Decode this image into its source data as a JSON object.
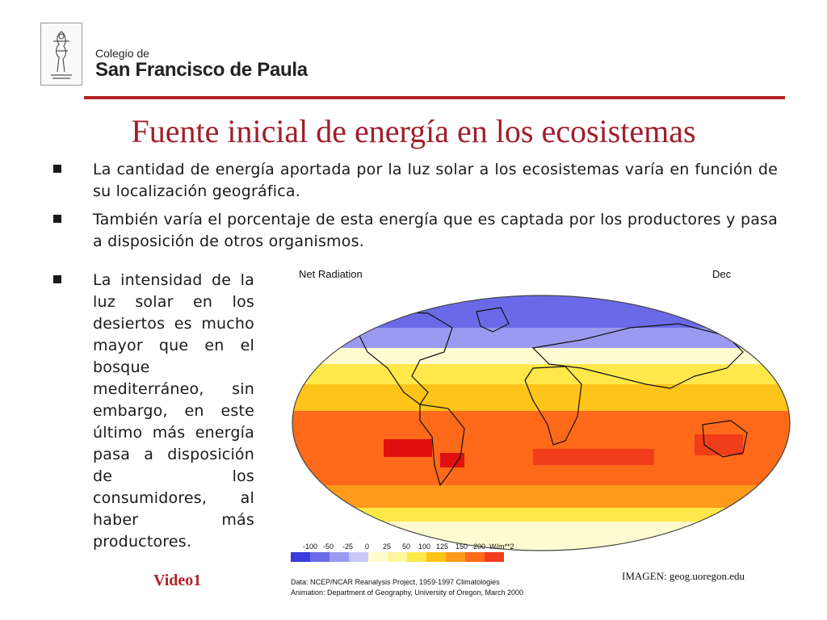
{
  "header": {
    "school_small": "Colegio de",
    "school_big": "San Francisco de Paula"
  },
  "title": "Fuente inicial de energía en los ecosistemas",
  "bullets": [
    "La cantidad de energía aportada por la luz solar a los ecosistemas varía en función de su localización geográfica.",
    "También varía el porcentaje de esta energía que es captada por los productores y pasa a disposición de otros organismos.",
    "La intensidad de la luz solar en los desiertos es mucho mayor que en el bosque mediterráneo, sin embargo, en este último más energía pasa a disposición de los consumidores, al haber más productores."
  ],
  "map": {
    "title": "Net Radiation",
    "month": "Dec",
    "scale_labels": [
      "-100",
      "-50",
      "-25",
      "0",
      "25",
      "50",
      "100",
      "125",
      "150",
      "200",
      "W/m**2"
    ],
    "scale_colors": [
      "#3b3bdc",
      "#6a6ae8",
      "#9a9af0",
      "#c8c8f6",
      "#fffbd0",
      "#fff5a0",
      "#ffe84a",
      "#ffc41a",
      "#ff9a1a",
      "#ff6a1a",
      "#f03d1a",
      "#e01010"
    ],
    "credit_line1": "Data:  NCEP/NCAR Reanalysis Project, 1959-1997 Climatologies",
    "credit_line2": "Animation:  Department of Geography, University of Oregon, March 2000"
  },
  "image_credit": "IMAGEN: geog.uoregon.edu",
  "video_link": "Video1"
}
